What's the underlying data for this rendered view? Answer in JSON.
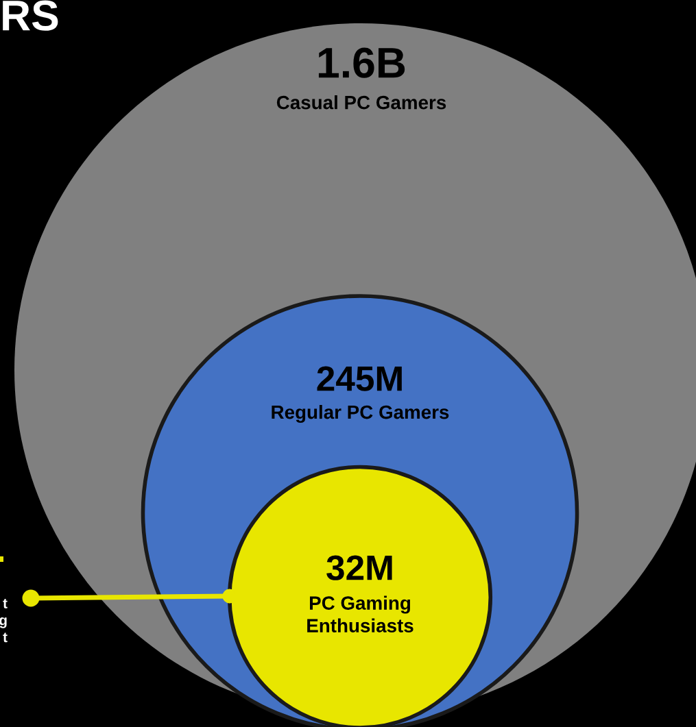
{
  "chart_data": {
    "type": "other",
    "title": "RS",
    "categories": [
      "Casual PC Gamers",
      "Regular PC Gamers",
      "PC Gaming\nEnthusiasts"
    ],
    "values": [
      1600000000,
      245000000,
      32000000
    ],
    "value_labels": [
      "1.6B",
      "245M",
      "32M"
    ],
    "colors": [
      "#808080",
      "#4472c4",
      "#e8e600"
    ],
    "annotations": [
      "t\ng\nt"
    ]
  }
}
